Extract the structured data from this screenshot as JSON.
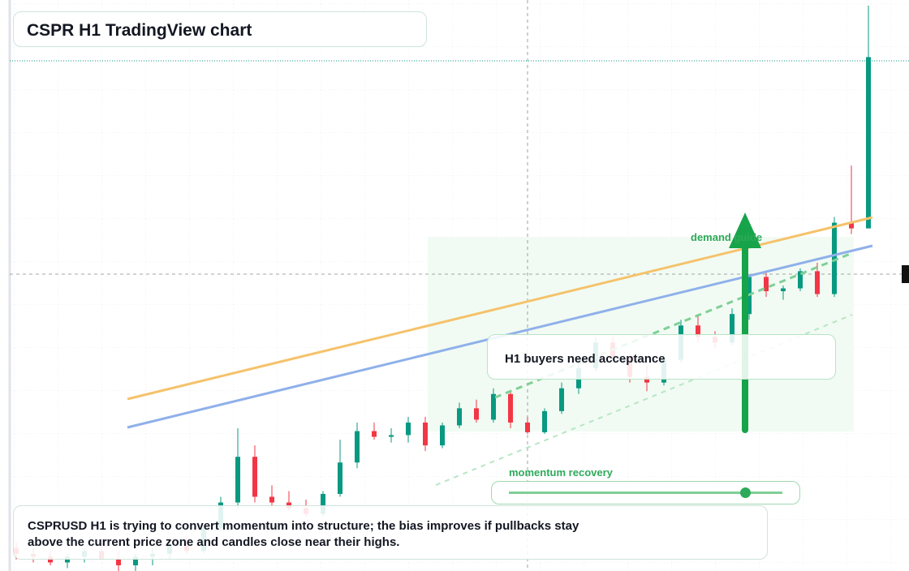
{
  "chart_data": {
    "type": "candlestick",
    "title": "CSPR H1 TradingView chart",
    "annotations": [
      "demand guide",
      "H1 buyers need acceptance",
      "momentum recovery"
    ],
    "caption": "CSPRUSD H1 is trying to convert momentum into structure; the bias improves if pullbacks stay above the current price zone and candles close near their highs.",
    "ylim": [
      0,
      100
    ],
    "up_color": "#089981",
    "down_color": "#f23645",
    "ohlc": [
      [
        4,
        5,
        2,
        3
      ],
      [
        3,
        4,
        1.5,
        2.5
      ],
      [
        2.5,
        3.5,
        1,
        1.5
      ],
      [
        1.5,
        3,
        0.5,
        2.5
      ],
      [
        2.5,
        4,
        1.5,
        3.5
      ],
      [
        3.5,
        5,
        2.5,
        2
      ],
      [
        2,
        3.5,
        0,
        1
      ],
      [
        1,
        3,
        0,
        2.5
      ],
      [
        2.5,
        4,
        1,
        3
      ],
      [
        3,
        5,
        2,
        4.5
      ],
      [
        4.5,
        6,
        3,
        3.5
      ],
      [
        3.5,
        8,
        3,
        7.5
      ],
      [
        7.5,
        13,
        7,
        12
      ],
      [
        12,
        25,
        11,
        20
      ],
      [
        20,
        22,
        12,
        13
      ],
      [
        13,
        15,
        11,
        12
      ],
      [
        12,
        14,
        10.5,
        11
      ],
      [
        11,
        12.5,
        9.5,
        10
      ],
      [
        10,
        14,
        9.5,
        13.5
      ],
      [
        13.5,
        23,
        13,
        19
      ],
      [
        19,
        26,
        18,
        24.5
      ],
      [
        24.5,
        26,
        23,
        23.5
      ],
      [
        23.5,
        25,
        22.5,
        23.8
      ],
      [
        23.8,
        27,
        22.5,
        26
      ],
      [
        26,
        27,
        21,
        22
      ],
      [
        22,
        26,
        21.5,
        25.5
      ],
      [
        25.5,
        29.5,
        25,
        28.5
      ],
      [
        28.5,
        30,
        26,
        26.5
      ],
      [
        26.5,
        32,
        26,
        31
      ],
      [
        31,
        31.5,
        25,
        26
      ],
      [
        26,
        27,
        24,
        24.3
      ],
      [
        24.3,
        28.5,
        24,
        28
      ],
      [
        28,
        33,
        27.5,
        32
      ],
      [
        32,
        37,
        31,
        35.5
      ],
      [
        35.5,
        41,
        35,
        40
      ],
      [
        40,
        41,
        37,
        37.5
      ],
      [
        37.5,
        38,
        33,
        34
      ],
      [
        34,
        36,
        31.5,
        33
      ],
      [
        33,
        38,
        32.5,
        37
      ],
      [
        37,
        44,
        36.5,
        43
      ],
      [
        43,
        45,
        40,
        41
      ],
      [
        41,
        42,
        39,
        40
      ],
      [
        40,
        46,
        39.5,
        45
      ],
      [
        45,
        52,
        44,
        51.5
      ],
      [
        51.5,
        52.5,
        48,
        49
      ],
      [
        49,
        50,
        47.5,
        49.5
      ],
      [
        49.5,
        53,
        49,
        52.5
      ],
      [
        52.5,
        54,
        48,
        48.5
      ],
      [
        48.5,
        62,
        48,
        61
      ],
      [
        61,
        71,
        59,
        60
      ],
      [
        60,
        99,
        60,
        90
      ]
    ]
  }
}
